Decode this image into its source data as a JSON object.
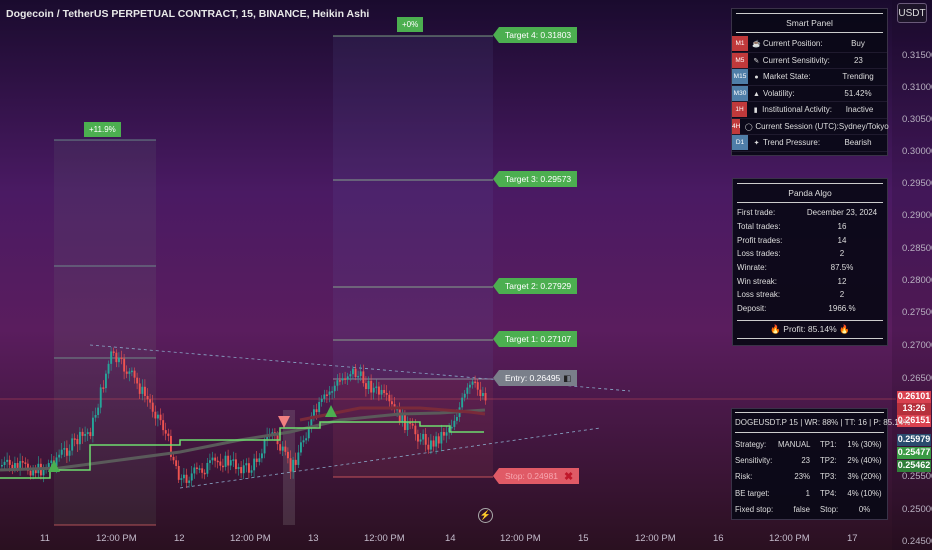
{
  "header": {
    "title": "Dogecoin / TetherUS PERPETUAL CONTRACT, 15, BINANCE, Heikin Ashi"
  },
  "currency_button": "USDT",
  "price_axis": {
    "ticks": [
      "0.31500",
      "0.31000",
      "0.30500",
      "0.30000",
      "0.29500",
      "0.29000",
      "0.28500",
      "0.28000",
      "0.27500",
      "0.27000",
      "0.26500",
      "0.25500",
      "0.25000",
      "0.24500"
    ],
    "tags": {
      "current_price": "0.26101",
      "countdown": "13:26",
      "secondary": "0.26151",
      "blue_level": "0.25979",
      "green_level_1": "0.25477",
      "green_level_2": "0.25462"
    }
  },
  "time_axis": {
    "ticks": [
      "11",
      "12:00 PM",
      "12",
      "12:00 PM",
      "13",
      "12:00 PM",
      "14",
      "12:00 PM",
      "15",
      "12:00 PM",
      "16",
      "12:00 PM",
      "17"
    ]
  },
  "trade_labels": {
    "target4": "Target 4: 0.31803",
    "target3": "Target 3: 0.29573",
    "target2": "Target 2: 0.27929",
    "target1": "Target 1: 0.27107",
    "entry": "Entry: 0.26495",
    "stop": "Stop: 0.24981",
    "pct_left": "+11.9%",
    "pct_right": "+0%"
  },
  "smart_panel": {
    "title": "Smart Panel",
    "rows": [
      {
        "tf": "M1",
        "tf_color": "#c0393b",
        "icon": "☕",
        "label": "Current Position:",
        "value": "Buy"
      },
      {
        "tf": "M5",
        "tf_color": "#c0393b",
        "icon": "✎",
        "label": "Current Sensitivity:",
        "value": "23"
      },
      {
        "tf": "M15",
        "tf_color": "#4f7ea8",
        "icon": "●",
        "label": "Market State:",
        "value": "Trending"
      },
      {
        "tf": "M30",
        "tf_color": "#4f7ea8",
        "icon": "▲",
        "label": "Volatility:",
        "value": "51.42%"
      },
      {
        "tf": "1H",
        "tf_color": "#c0393b",
        "icon": "▮",
        "label": "Institutional Activity:",
        "value": "Inactive"
      },
      {
        "tf": "4H",
        "tf_color": "#c0393b",
        "icon": "◯",
        "label": "Current Session (UTC):",
        "value": "Sydney/Tokyo"
      },
      {
        "tf": "D1",
        "tf_color": "#4f7ea8",
        "icon": "✦",
        "label": "Trend Pressure:",
        "value": "Bearish"
      }
    ]
  },
  "panda_algo": {
    "title": "Panda Algo",
    "rows": [
      {
        "label": "First trade:",
        "value": "December 23, 2024"
      },
      {
        "label": "Total trades:",
        "value": "16"
      },
      {
        "label": "Profit trades:",
        "value": "14"
      },
      {
        "label": "Loss trades:",
        "value": "2"
      },
      {
        "label": "Winrate:",
        "value": "87.5%"
      },
      {
        "label": "Win streak:",
        "value": "12"
      },
      {
        "label": "Loss streak:",
        "value": "2"
      },
      {
        "label": "Deposit:",
        "value": "1966.%"
      }
    ],
    "profit": "Profit: 85.14%"
  },
  "strategy_panel": {
    "header": "DOGEUSDT.P 15 | WR: 88% | TT: 16 | P: 85.14%",
    "rows": [
      {
        "c1": "Strategy:",
        "c2": "MANUAL",
        "c3": "TP1:",
        "c4": "1% (30%)"
      },
      {
        "c1": "Sensitivity:",
        "c2": "23",
        "c3": "TP2:",
        "c4": "2% (40%)"
      },
      {
        "c1": "Risk:",
        "c2": "23%",
        "c3": "TP3:",
        "c4": "3% (20%)"
      },
      {
        "c1": "BE target:",
        "c2": "1",
        "c3": "TP4:",
        "c4": "4% (10%)"
      },
      {
        "c1": "Fixed stop:",
        "c2": "false",
        "c3": "Stop:",
        "c4": "0%"
      }
    ]
  },
  "colors": {
    "bull": "#26a69a",
    "bear": "#ef5350",
    "target": "#4caf50",
    "stop": "#e05a66"
  }
}
